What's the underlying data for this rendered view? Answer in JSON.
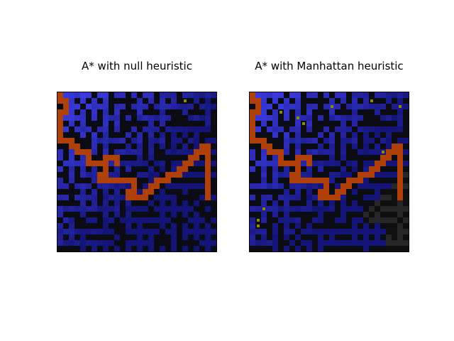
{
  "chart_data": [
    {
      "type": "heatmap",
      "title": "A* with null heuristic",
      "legend": "none",
      "colors": {
        "wall": "#0b0b14",
        "frontier": "#4040ee",
        "explored_old": "#141466",
        "unexplored": "#262626",
        "goal_marker": "#8a8a10",
        "path": "#b0400a"
      },
      "path_color": "#b0400a",
      "path_cells": [
        [
          0,
          0
        ],
        [
          0,
          1
        ],
        [
          1,
          1
        ],
        [
          1,
          2
        ],
        [
          1,
          3
        ],
        [
          0,
          3
        ],
        [
          0,
          4
        ],
        [
          0,
          5
        ],
        [
          0,
          6
        ],
        [
          0,
          7
        ],
        [
          0,
          8
        ],
        [
          1,
          8
        ],
        [
          2,
          8
        ],
        [
          2,
          9
        ],
        [
          3,
          9
        ],
        [
          3,
          10
        ],
        [
          4,
          10
        ],
        [
          5,
          10
        ],
        [
          5,
          11
        ],
        [
          5,
          12
        ],
        [
          6,
          12
        ],
        [
          7,
          12
        ],
        [
          8,
          12
        ],
        [
          8,
          11
        ],
        [
          9,
          11
        ],
        [
          10,
          11
        ],
        [
          10,
          12
        ],
        [
          8,
          13
        ],
        [
          8,
          14
        ],
        [
          7,
          14
        ],
        [
          7,
          15
        ],
        [
          8,
          15
        ],
        [
          9,
          15
        ],
        [
          10,
          15
        ],
        [
          11,
          15
        ],
        [
          12,
          15
        ],
        [
          13,
          15
        ],
        [
          13,
          16
        ],
        [
          13,
          17
        ],
        [
          12,
          17
        ],
        [
          12,
          18
        ],
        [
          13,
          18
        ],
        [
          14,
          18
        ],
        [
          15,
          18
        ],
        [
          15,
          17
        ],
        [
          16,
          17
        ],
        [
          16,
          16
        ],
        [
          17,
          16
        ],
        [
          17,
          15
        ],
        [
          18,
          15
        ],
        [
          19,
          15
        ],
        [
          19,
          14
        ],
        [
          20,
          14
        ],
        [
          21,
          14
        ],
        [
          21,
          13
        ],
        [
          22,
          13
        ],
        [
          22,
          12
        ],
        [
          23,
          12
        ],
        [
          23,
          11
        ],
        [
          24,
          11
        ],
        [
          24,
          10
        ],
        [
          25,
          10
        ],
        [
          25,
          9
        ],
        [
          26,
          9
        ],
        [
          26,
          10
        ],
        [
          26,
          11
        ],
        [
          26,
          12
        ],
        [
          26,
          13
        ],
        [
          26,
          14
        ],
        [
          26,
          15
        ],
        [
          26,
          16
        ],
        [
          26,
          17
        ],
        [
          26,
          18
        ]
      ],
      "explored_fraction": 0.99
    },
    {
      "type": "heatmap",
      "title": "A* with Manhattan heuristic",
      "legend": "none",
      "colors": {
        "wall": "#0b0b14",
        "frontier": "#4040ee",
        "explored_old": "#141466",
        "unexplored": "#262626",
        "goal_marker": "#8a8a10",
        "path": "#b0400a"
      },
      "path_color": "#b0400a",
      "path_cells": [
        [
          0,
          0
        ],
        [
          0,
          1
        ],
        [
          1,
          1
        ],
        [
          1,
          2
        ],
        [
          1,
          3
        ],
        [
          0,
          3
        ],
        [
          0,
          4
        ],
        [
          0,
          5
        ],
        [
          0,
          6
        ],
        [
          0,
          7
        ],
        [
          0,
          8
        ],
        [
          1,
          8
        ],
        [
          2,
          8
        ],
        [
          2,
          9
        ],
        [
          3,
          9
        ],
        [
          3,
          10
        ],
        [
          4,
          10
        ],
        [
          5,
          10
        ],
        [
          5,
          11
        ],
        [
          5,
          12
        ],
        [
          6,
          12
        ],
        [
          7,
          12
        ],
        [
          8,
          12
        ],
        [
          8,
          11
        ],
        [
          9,
          11
        ],
        [
          10,
          11
        ],
        [
          10,
          12
        ],
        [
          8,
          13
        ],
        [
          8,
          14
        ],
        [
          7,
          14
        ],
        [
          7,
          15
        ],
        [
          8,
          15
        ],
        [
          9,
          15
        ],
        [
          10,
          15
        ],
        [
          11,
          15
        ],
        [
          12,
          15
        ],
        [
          13,
          15
        ],
        [
          13,
          16
        ],
        [
          13,
          17
        ],
        [
          12,
          17
        ],
        [
          12,
          18
        ],
        [
          13,
          18
        ],
        [
          14,
          18
        ],
        [
          15,
          18
        ],
        [
          15,
          17
        ],
        [
          16,
          17
        ],
        [
          16,
          16
        ],
        [
          17,
          16
        ],
        [
          17,
          15
        ],
        [
          18,
          15
        ],
        [
          19,
          15
        ],
        [
          19,
          14
        ],
        [
          20,
          14
        ],
        [
          21,
          14
        ],
        [
          21,
          13
        ],
        [
          22,
          13
        ],
        [
          22,
          12
        ],
        [
          23,
          12
        ],
        [
          23,
          11
        ],
        [
          24,
          11
        ],
        [
          24,
          10
        ],
        [
          25,
          10
        ],
        [
          25,
          9
        ],
        [
          26,
          9
        ],
        [
          26,
          10
        ],
        [
          26,
          11
        ],
        [
          26,
          12
        ],
        [
          26,
          13
        ],
        [
          26,
          14
        ],
        [
          26,
          15
        ],
        [
          26,
          16
        ],
        [
          26,
          17
        ],
        [
          26,
          18
        ]
      ],
      "explored_fraction": 0.8
    }
  ]
}
